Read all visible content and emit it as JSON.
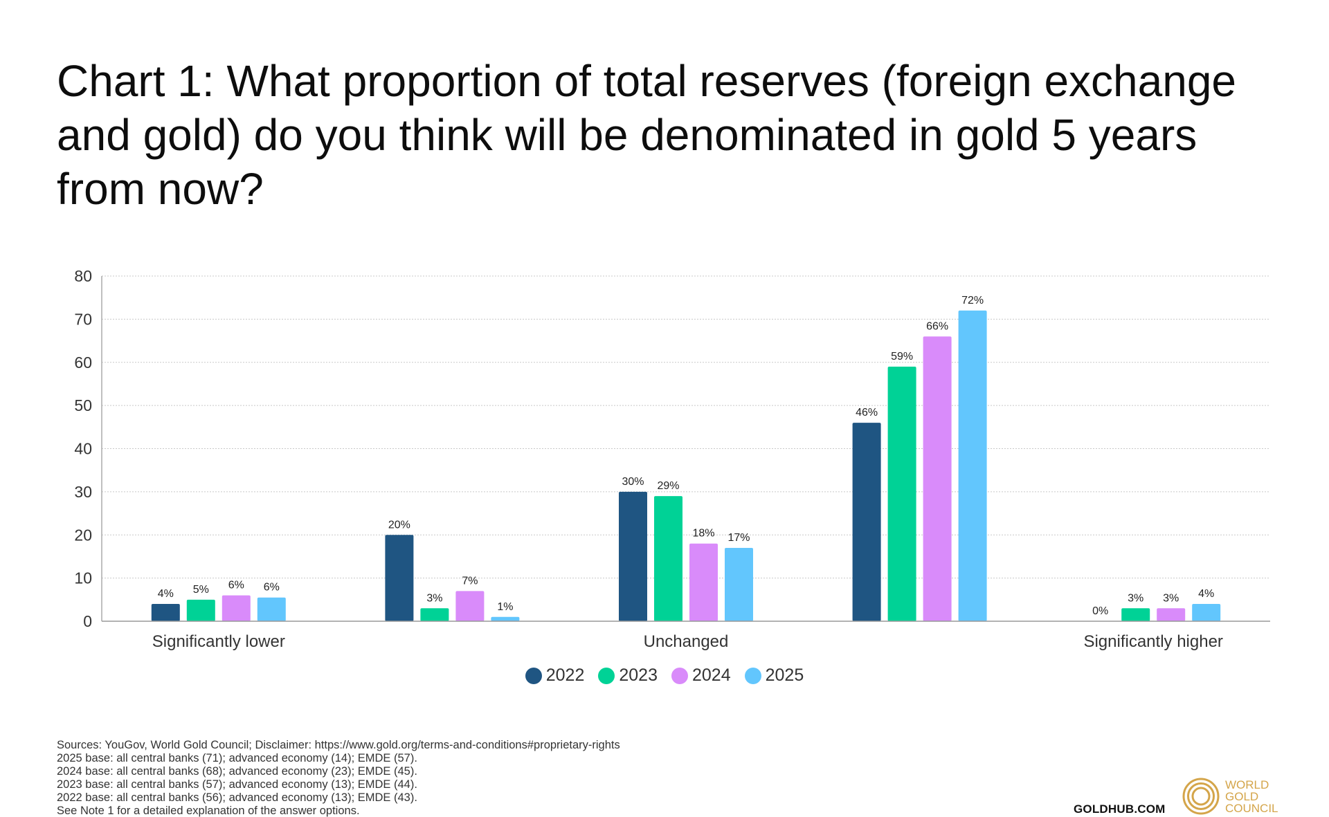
{
  "title": "Chart 1: What proportion of total reserves (foreign exchange and gold) do you think will be denominated in gold 5 years from now?",
  "chart_data": {
    "type": "bar",
    "title": "Chart 1: What proportion of total reserves (foreign exchange and gold) do you think will be denominated in gold 5 years from now?",
    "categories": [
      "Significantly lower",
      "",
      "Unchanged",
      "",
      "Significantly higher"
    ],
    "series": [
      {
        "name": "2022",
        "color": "#1f5582",
        "values": [
          4,
          20,
          30,
          46,
          0
        ],
        "labels": [
          "4%",
          "20%",
          "30%",
          "46%",
          "0%"
        ]
      },
      {
        "name": "2023",
        "color": "#00d296",
        "values": [
          5,
          3,
          29,
          59,
          3
        ],
        "labels": [
          "5%",
          "3%",
          "29%",
          "59%",
          "3%"
        ]
      },
      {
        "name": "2024",
        "color": "#d98bfa",
        "values": [
          6,
          7,
          18,
          66,
          3
        ],
        "labels": [
          "6%",
          "7%",
          "18%",
          "66%",
          "3%"
        ]
      },
      {
        "name": "2025",
        "color": "#62c6fd",
        "values": [
          5.5,
          1,
          17,
          72,
          4
        ],
        "labels": [
          "6%",
          "1%",
          "17%",
          "72%",
          "4%"
        ]
      }
    ],
    "yticks": [
      "0",
      "10",
      "20",
      "30",
      "40",
      "50",
      "60",
      "70",
      "80"
    ],
    "ylim": [
      0,
      80
    ],
    "xlabel": "",
    "ylabel": "",
    "grid": true,
    "legend_position": "bottom"
  },
  "legend": [
    "2022",
    "2023",
    "2024",
    "2025"
  ],
  "footer": {
    "lines": [
      "Sources: YouGov, World Gold Council; Disclaimer: https://www.gold.org/terms-and-conditions#proprietary-rights",
      "2025 base: all central banks (71); advanced economy (14); EMDE (57).",
      "2024 base: all central banks (68); advanced economy (23); EMDE (45).",
      "2023 base: all central banks (57); advanced economy (13); EMDE (44).",
      "2022 base: all central banks (56); advanced economy (13); EMDE (43).",
      "See Note 1 for a detailed explanation of the answer options."
    ],
    "site": "GOLDHUB.COM",
    "logo_text": [
      "WORLD",
      "GOLD",
      "COUNCIL"
    ],
    "logo_color": "#d4a54a"
  }
}
